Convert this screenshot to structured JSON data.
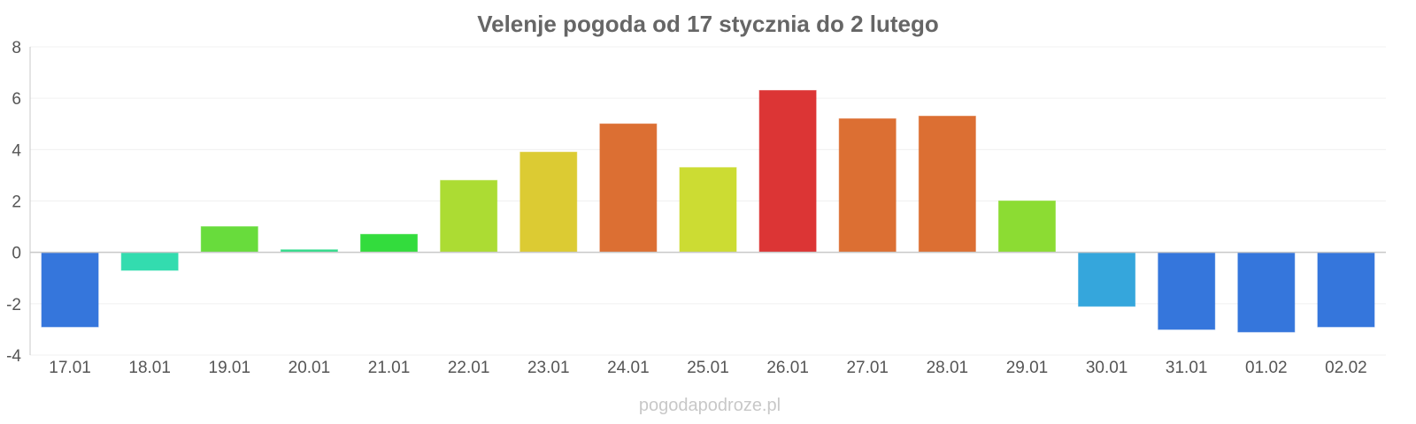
{
  "chart_data": {
    "type": "bar",
    "title": "Velenje pogoda od 17 stycznia do 2 lutego",
    "xlabel": "",
    "ylabel": "",
    "categories": [
      "17.01",
      "18.01",
      "19.01",
      "20.01",
      "21.01",
      "22.01",
      "23.01",
      "24.01",
      "25.01",
      "26.01",
      "27.01",
      "28.01",
      "29.01",
      "30.01",
      "31.01",
      "01.02",
      "02.02"
    ],
    "values": [
      -2.9,
      -0.7,
      1.0,
      0.1,
      0.7,
      2.8,
      3.9,
      5.0,
      3.3,
      6.3,
      5.2,
      5.3,
      2.0,
      -2.1,
      -3.0,
      -3.1,
      -2.9
    ],
    "colors": [
      "#3576dc",
      "#33dcaf",
      "#68dc3c",
      "#33dc8c",
      "#33dc3d",
      "#acdc33",
      "#dccb33",
      "#dc6f33",
      "#ccdc33",
      "#dc3535",
      "#dc6f33",
      "#dc6f33",
      "#8cdc33",
      "#35a6dc",
      "#3576dc",
      "#3576dc",
      "#3576dc"
    ],
    "ylim": [
      -4,
      8
    ],
    "yticks": [
      "8",
      "6",
      "4",
      "2",
      "0",
      "-2",
      "-4"
    ],
    "grid": true,
    "legend": "none"
  },
  "watermark": "pogodapodroze.pl"
}
